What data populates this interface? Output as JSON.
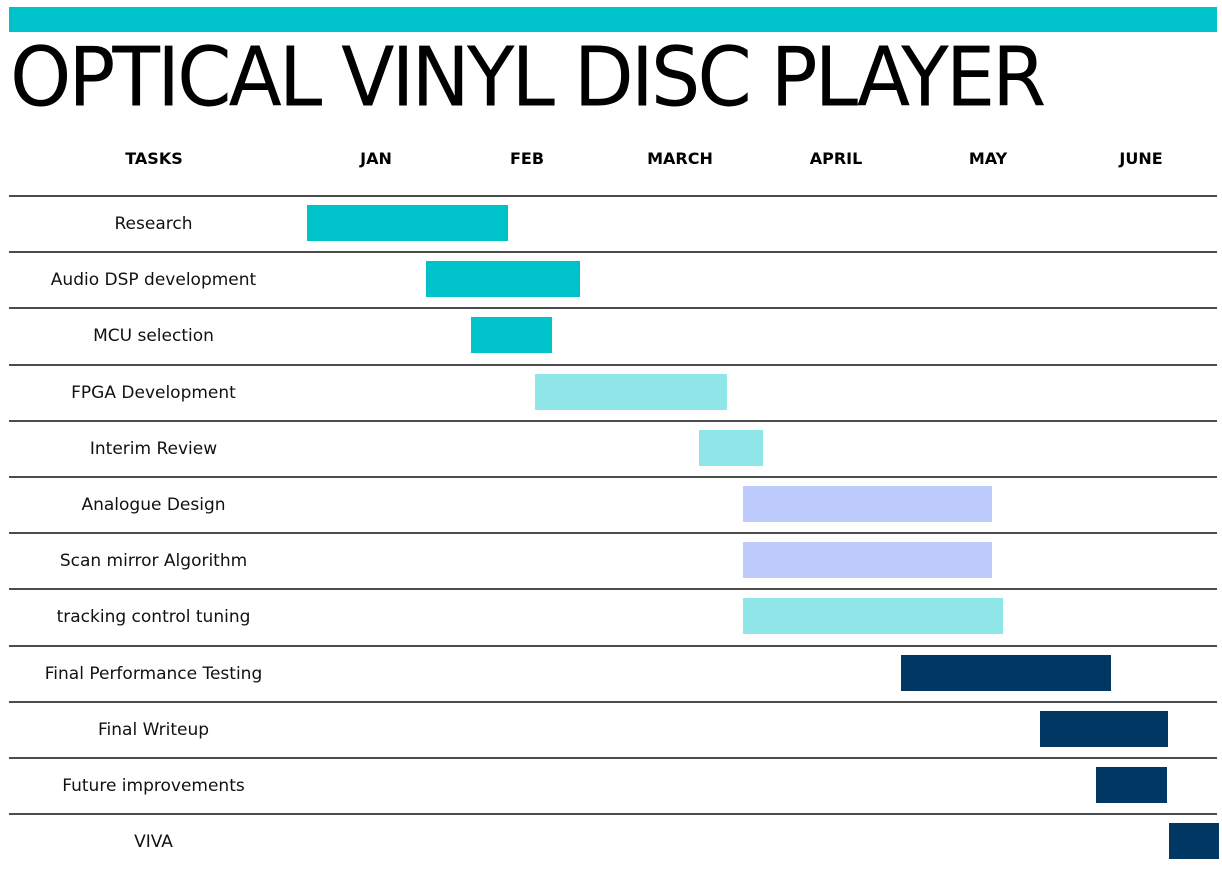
{
  "title": "OPTICAL VINYL DISC PLAYER",
  "colors": {
    "header_bar": "#00c2cb",
    "teal": "#00c2cb",
    "light_teal": "#8fe6e8",
    "periwinkle": "#bccbfb",
    "navy": "#003763"
  },
  "chart_data": {
    "type": "gantt",
    "task_column_label": "TASKS",
    "months": [
      "JAN",
      "FEB",
      "MARCH",
      "APRIL",
      "MAY",
      "JUNE"
    ],
    "x_range": [
      0,
      6
    ],
    "tasks": [
      {
        "name": "Research",
        "start": 0.0,
        "end": 1.32,
        "color": "#00c2cb"
      },
      {
        "name": "Audio DSP development",
        "start": 0.78,
        "end": 1.79,
        "color": "#00c2cb"
      },
      {
        "name": "MCU selection",
        "start": 1.08,
        "end": 1.61,
        "color": "#00c2cb"
      },
      {
        "name": "FPGA Development",
        "start": 1.5,
        "end": 2.76,
        "color": "#8fe6e8"
      },
      {
        "name": "Interim Review",
        "start": 2.58,
        "end": 3.0,
        "color": "#8fe6e8"
      },
      {
        "name": "Analogue Design",
        "start": 2.87,
        "end": 4.51,
        "color": "#bccbfb"
      },
      {
        "name": "Scan mirror Algorithm",
        "start": 2.87,
        "end": 4.51,
        "color": "#bccbfb"
      },
      {
        "name": "tracking control tuning",
        "start": 2.87,
        "end": 4.58,
        "color": "#8fe6e8"
      },
      {
        "name": "Final Performance Testing",
        "start": 3.91,
        "end": 5.29,
        "color": "#003763"
      },
      {
        "name": "Final Writeup",
        "start": 4.82,
        "end": 5.66,
        "color": "#003763"
      },
      {
        "name": "Future improvements",
        "start": 5.19,
        "end": 5.66,
        "color": "#003763"
      },
      {
        "name": "VIVA",
        "start": 5.67,
        "end": 6.0,
        "color": "#003763"
      }
    ]
  }
}
